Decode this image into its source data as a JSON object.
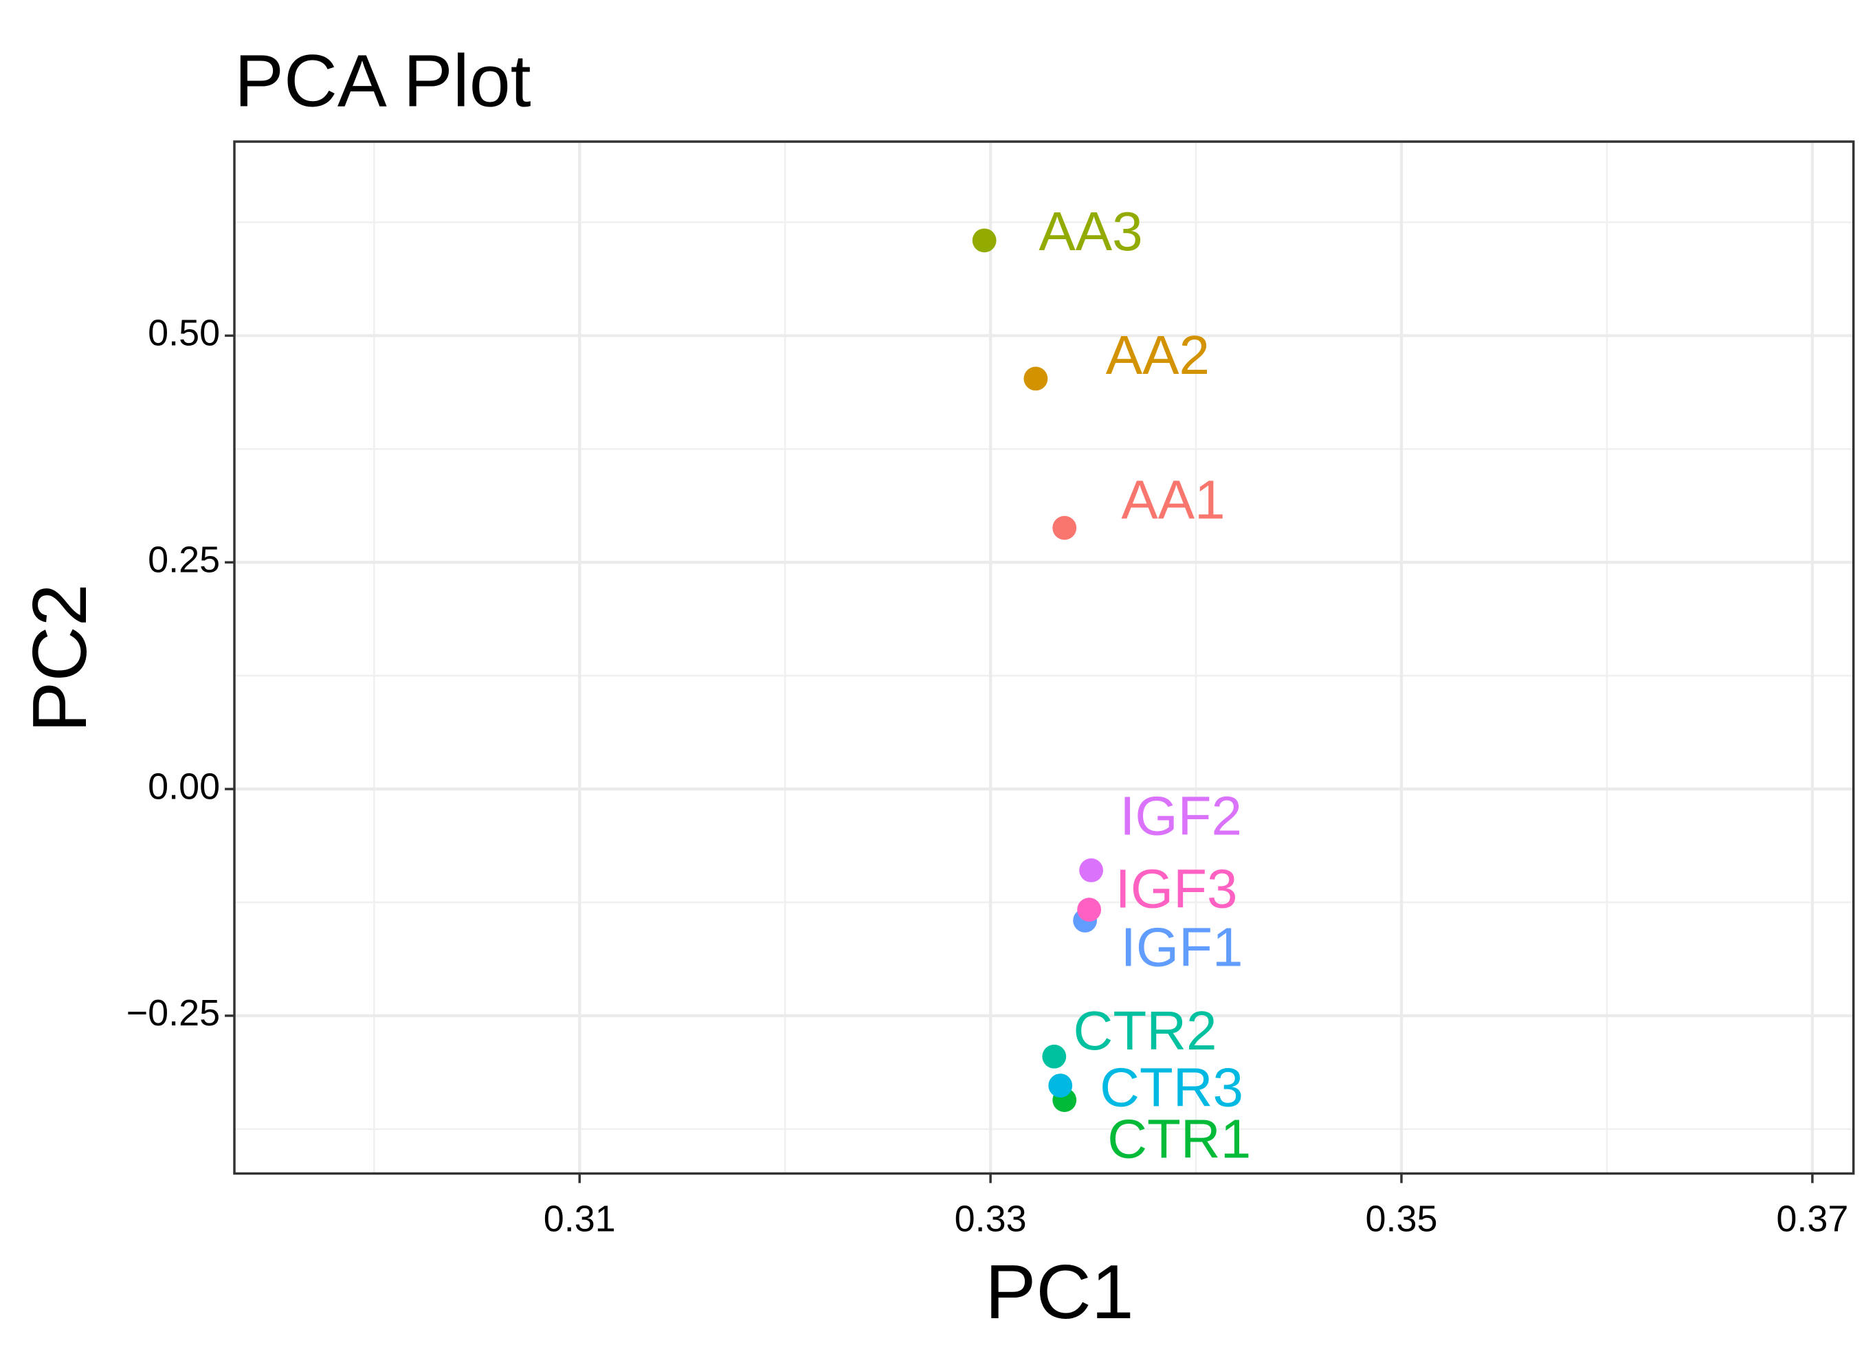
{
  "chart_data": {
    "type": "scatter",
    "title": "PCA Plot",
    "x_label": "PC1",
    "y_label": "PC2",
    "xlim": [
      0.2932,
      0.372
    ],
    "ylim": [
      -0.424,
      0.714
    ],
    "xticks": [
      0.31,
      0.33,
      0.35,
      0.37
    ],
    "yticks": [
      {
        "value": 0.5,
        "label": "0.50"
      },
      {
        "value": 0.25,
        "label": "0.25"
      },
      {
        "value": 0,
        "label": "0.00"
      },
      {
        "value": -0.25,
        "label": "−0.25"
      }
    ],
    "grid": true,
    "series": [
      {
        "name": "AA1",
        "color": "#F8766D",
        "x": [
          0.3336
        ],
        "values": [
          0.288
        ]
      },
      {
        "name": "AA2",
        "color": "#D39200",
        "x": [
          0.3322
        ],
        "values": [
          0.4526
        ]
      },
      {
        "name": "AA3",
        "color": "#93AA00",
        "x": [
          0.3297
        ],
        "values": [
          0.605
        ]
      },
      {
        "name": "CTR1",
        "color": "#00BA38",
        "x": [
          0.3336
        ],
        "values": [
          -0.343
        ]
      },
      {
        "name": "CTR2",
        "color": "#00C19F",
        "x": [
          0.3331
        ],
        "values": [
          -0.295
        ]
      },
      {
        "name": "CTR3",
        "color": "#00B9E3",
        "x": [
          0.3334
        ],
        "values": [
          -0.327
        ]
      },
      {
        "name": "IGF1",
        "color": "#619CFF",
        "x": [
          0.3346
        ],
        "values": [
          -0.145
        ]
      },
      {
        "name": "IGF2",
        "color": "#DB72FB",
        "x": [
          0.3349
        ],
        "values": [
          -0.0896
        ]
      },
      {
        "name": "IGF3",
        "color": "#FF61C3",
        "x": [
          0.3348
        ],
        "values": [
          -0.133
        ]
      }
    ]
  }
}
